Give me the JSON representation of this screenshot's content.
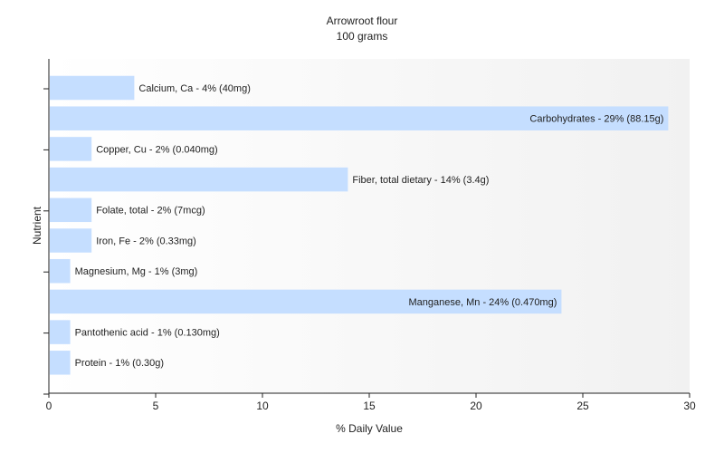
{
  "chart_data": {
    "type": "bar",
    "orientation": "horizontal",
    "title": "Arrowroot flour",
    "subtitle": "100 grams",
    "xlabel": "% Daily Value",
    "ylabel": "Nutrient",
    "xlim": [
      0,
      30
    ],
    "xticks": [
      "0",
      "5",
      "10",
      "15",
      "20",
      "25",
      "30"
    ],
    "grid": false,
    "bar_color": "#c5deff",
    "categories": [
      "Calcium, Ca",
      "Carbohydrates",
      "Copper, Cu",
      "Fiber, total dietary",
      "Folate, total",
      "Iron, Fe",
      "Magnesium, Mg",
      "Manganese, Mn",
      "Pantothenic acid",
      "Protein"
    ],
    "values": [
      4,
      29,
      2,
      14,
      2,
      2,
      1,
      24,
      1,
      1
    ],
    "labels": [
      "Calcium, Ca - 4% (40mg)",
      "Carbohydrates - 29% (88.15g)",
      "Copper, Cu - 2% (0.040mg)",
      "Fiber, total dietary - 14% (3.4g)",
      "Folate, total - 2% (7mcg)",
      "Iron, Fe - 2% (0.33mg)",
      "Magnesium, Mg - 1% (3mg)",
      "Manganese, Mn - 24% (0.470mg)",
      "Pantothenic acid - 1% (0.130mg)",
      "Protein - 1% (0.30g)"
    ]
  }
}
